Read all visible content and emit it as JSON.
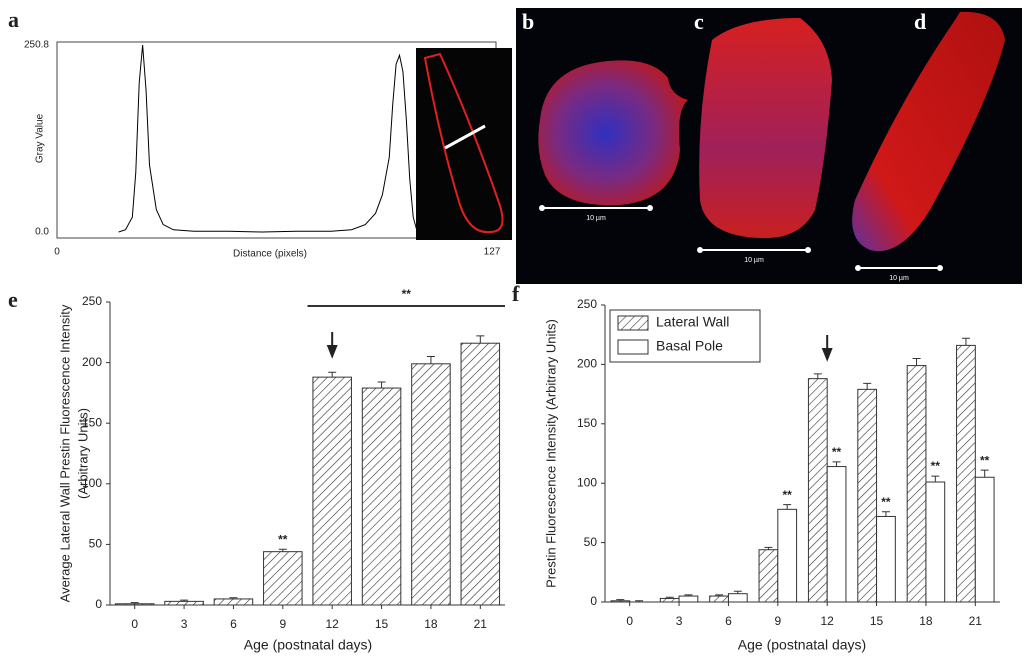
{
  "chart_data": [
    {
      "type": "line",
      "label": "a",
      "x_label": "Distance (pixels)",
      "y_label": "Gray Value",
      "xlim": [
        0,
        127
      ],
      "ylim": [
        0,
        250.8
      ],
      "xticks": [
        0,
        127
      ],
      "yticks": [
        {
          "value": 0,
          "label": "0.0"
        },
        250.8
      ],
      "color": "#000000",
      "x": [
        18,
        20,
        22,
        23,
        24,
        25,
        26,
        27,
        29,
        31,
        34,
        40,
        50,
        60,
        70,
        80,
        86,
        90,
        93,
        95,
        97,
        98,
        99,
        100,
        101,
        102,
        103,
        104,
        105
      ],
      "y": [
        0,
        3,
        20,
        80,
        200,
        250.8,
        190,
        90,
        30,
        10,
        3,
        1,
        1,
        0,
        1,
        1,
        3,
        10,
        25,
        50,
        100,
        170,
        225,
        237,
        215,
        150,
        70,
        20,
        3
      ]
    },
    {
      "type": "bar",
      "label": "e",
      "y_label": [
        "Average Lateral Wall Prestin Fluorescence Intensity",
        "(Arbitrary Units)"
      ],
      "x_label": "Age (postnatal days)",
      "categories": [
        "0",
        "3",
        "6",
        "9",
        "12",
        "15",
        "18",
        "21"
      ],
      "ylim": [
        0,
        250
      ],
      "yticks": [
        0,
        50,
        100,
        150,
        200,
        250
      ],
      "series": [
        {
          "values": [
            1,
            3,
            5,
            44,
            188,
            179,
            199,
            216
          ],
          "errors": [
            1,
            1,
            1,
            2,
            4,
            5,
            6,
            6
          ],
          "color": "#ffffff",
          "hatch": true
        }
      ],
      "annotations": [
        {
          "text": "**",
          "category": "9"
        }
      ],
      "bracket": {
        "text": "**",
        "from": "12",
        "to": "21"
      }
    },
    {
      "type": "bar",
      "label": "f",
      "y_label": [
        "Prestin Fluorescence Intensity (Arbitrary Units)"
      ],
      "x_label": "Age (postnatal days)",
      "categories": [
        "0",
        "3",
        "6",
        "9",
        "12",
        "15",
        "18",
        "21"
      ],
      "ylim": [
        0,
        250
      ],
      "yticks": [
        0,
        50,
        100,
        150,
        200,
        250
      ],
      "legend": "top-left",
      "series": [
        {
          "name": "Lateral Wall",
          "values": [
            1,
            3,
            5,
            44,
            188,
            179,
            199,
            216
          ],
          "errors": [
            1,
            1,
            1,
            2,
            4,
            5,
            6,
            6
          ],
          "color": "#ffffff",
          "hatch": true
        },
        {
          "name": "Basal Pole",
          "values": [
            0,
            5,
            7,
            78,
            114,
            72,
            101,
            105
          ],
          "errors": [
            1,
            1,
            2,
            4,
            4,
            4,
            5,
            6
          ],
          "color": "#ffffff",
          "hatch": false
        }
      ],
      "annotations": [
        {
          "text": "**",
          "category": "9",
          "series": "Basal Pole"
        },
        {
          "text": "**",
          "category": "12",
          "series": "Basal Pole"
        },
        {
          "text": "**",
          "category": "15",
          "series": "Basal Pole"
        },
        {
          "text": "**",
          "category": "18",
          "series": "Basal Pole"
        },
        {
          "text": "**",
          "category": "21",
          "series": "Basal Pole"
        }
      ]
    }
  ],
  "images": [
    {
      "label": "b",
      "scale": "10 µm"
    },
    {
      "label": "c",
      "scale": "10 µm"
    },
    {
      "label": "d",
      "scale": "10 µm"
    }
  ]
}
